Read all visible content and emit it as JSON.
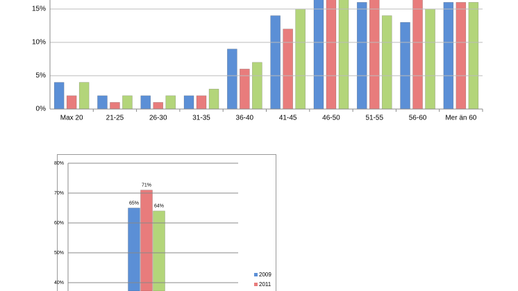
{
  "chart_data": [
    {
      "type": "bar",
      "categories": [
        "Max 20",
        "21-25",
        "26-30",
        "31-35",
        "36-40",
        "41-45",
        "46-50",
        "51-55",
        "56-60",
        "Mer än 60"
      ],
      "series": [
        {
          "color": "#5b8fd6",
          "values": [
            4,
            2,
            2,
            2,
            9,
            14,
            17,
            16,
            13,
            16
          ]
        },
        {
          "color": "#e87c7c",
          "values": [
            2,
            1,
            1,
            2,
            6,
            12,
            17,
            17,
            17,
            16
          ]
        },
        {
          "color": "#b3d57a",
          "values": [
            4,
            2,
            2,
            3,
            7,
            15,
            17,
            14,
            15,
            16
          ]
        }
      ],
      "ylim": [
        0,
        16.35
      ],
      "yticks": [
        {
          "value": 0,
          "label": "0%"
        },
        {
          "value": 5,
          "label": "5%"
        },
        {
          "value": 10,
          "label": "10%"
        },
        {
          "value": 15,
          "label": "15%"
        }
      ],
      "grid": true
    },
    {
      "type": "bar",
      "categories": [
        null
      ],
      "series": [
        {
          "name": "2009",
          "color": "#5b8fd6",
          "values": [
            65
          ],
          "value_labels": [
            "65%"
          ]
        },
        {
          "name": "2011",
          "color": "#e87c7c",
          "values": [
            71
          ],
          "value_labels": [
            "71%"
          ]
        },
        {
          "color": "#b3d57a",
          "values": [
            64
          ],
          "value_labels": [
            "64%"
          ]
        }
      ],
      "ylim": [
        37.2,
        80
      ],
      "yticks": [
        {
          "value": 40,
          "label": "40%"
        },
        {
          "value": 50,
          "label": "50%"
        },
        {
          "value": 60,
          "label": "60%"
        },
        {
          "value": 70,
          "label": "70%"
        },
        {
          "value": 80,
          "label": "80%"
        }
      ],
      "grid": true,
      "legend": "right"
    }
  ]
}
